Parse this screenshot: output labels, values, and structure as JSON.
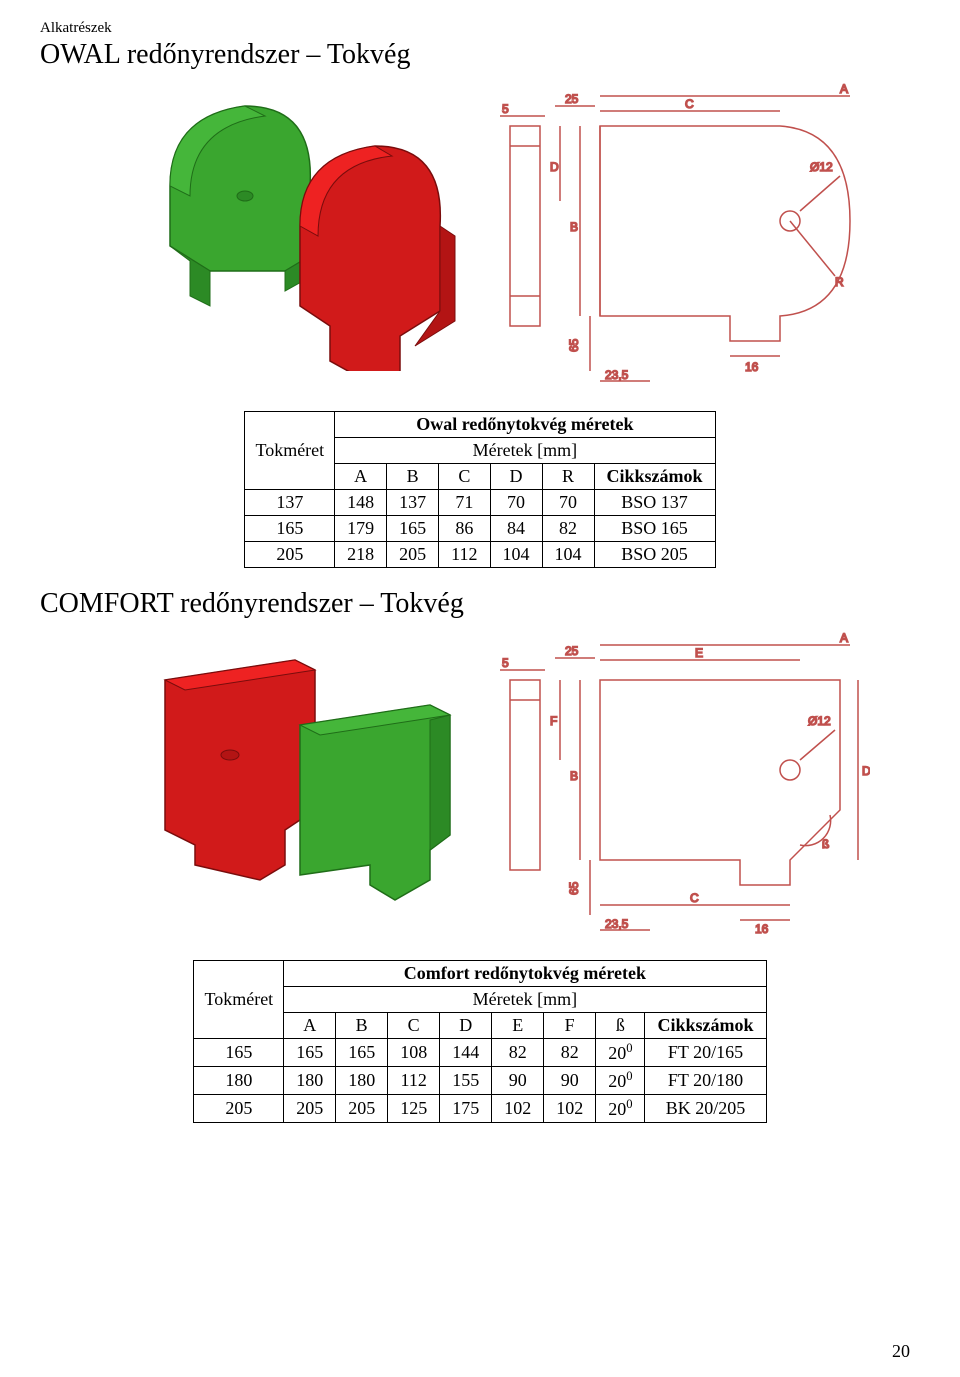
{
  "page": {
    "subtitle": "Alkatrészek",
    "title1": "OWAL redőnyrendszer – Tokvég",
    "title2": "COMFORT redőnyrendszer – Tokvég",
    "pagenum": "20"
  },
  "owal_drawing": {
    "labels": {
      "A": "A",
      "B": "B",
      "C": "C",
      "D": "D",
      "R": "R",
      "five": "5",
      "twentyfive": "25",
      "sixtyfive": "65",
      "sixteen": "16",
      "twentythree5": "23,5",
      "phi": "Ø12"
    }
  },
  "comfort_drawing": {
    "labels": {
      "A": "A",
      "B": "B",
      "C": "C",
      "D": "D",
      "E": "E",
      "F": "F",
      "beta": "ß",
      "five": "5",
      "twentyfive": "25",
      "sixtyfive": "65",
      "sixteen": "16",
      "twentythree5": "23,5",
      "phi": "Ø12"
    }
  },
  "table1": {
    "caption": "Owal redőnytokvég méretek",
    "mm": "Méretek [mm]",
    "rowlabel": "Tokméret",
    "cols": [
      "A",
      "B",
      "C",
      "D",
      "R",
      "Cikkszámok"
    ],
    "rows": [
      [
        "137",
        "148",
        "137",
        "71",
        "70",
        "70",
        "BSO 137"
      ],
      [
        "165",
        "179",
        "165",
        "86",
        "84",
        "82",
        "BSO 165"
      ],
      [
        "205",
        "218",
        "205",
        "112",
        "104",
        "104",
        "BSO 205"
      ]
    ]
  },
  "table2": {
    "caption": "Comfort redőnytokvég méretek",
    "mm": "Méretek [mm]",
    "rowlabel": "Tokméret",
    "cols": [
      "A",
      "B",
      "C",
      "D",
      "E",
      "F",
      "ß",
      "Cikkszámok"
    ],
    "rows": [
      [
        "165",
        "165",
        "165",
        "108",
        "144",
        "82",
        "82",
        "20",
        "FT 20/165"
      ],
      [
        "180",
        "180",
        "180",
        "112",
        "155",
        "90",
        "90",
        "20",
        "FT 20/180"
      ],
      [
        "205",
        "205",
        "205",
        "125",
        "175",
        "102",
        "102",
        "20",
        "BK 20/205"
      ]
    ],
    "deg": "0"
  },
  "colors": {
    "green_fill": "#3aa62f",
    "green_stroke": "#1f6d18",
    "red_fill": "#d11a1a",
    "red_stroke": "#7a0c0c",
    "tech_stroke": "#c0504d"
  }
}
